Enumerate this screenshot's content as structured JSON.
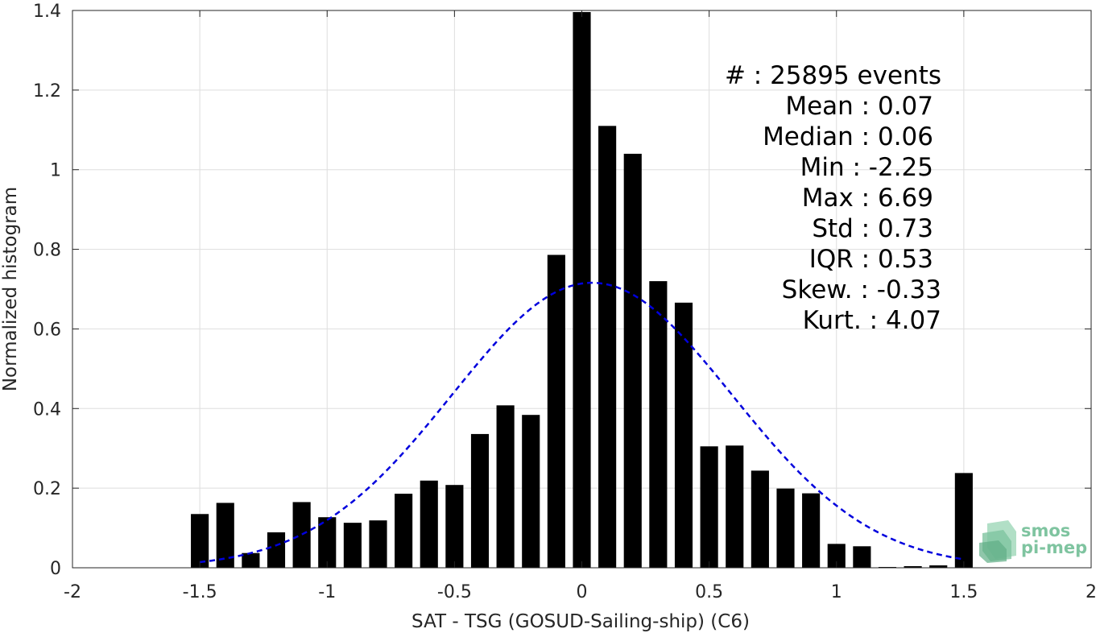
{
  "chart_data": {
    "type": "bar",
    "xlabel": "SAT - TSG (GOSUD-Sailing-ship) (C6)",
    "ylabel": "Normalized histogram",
    "xlim": [
      -2,
      2
    ],
    "ylim": [
      0,
      1.4
    ],
    "xticks": [
      -2,
      -1.5,
      -1,
      -0.5,
      0,
      0.5,
      1,
      1.5,
      2
    ],
    "xtick_labels": [
      "-2",
      "-1.5",
      "-1",
      "-0.5",
      "0",
      "0.5",
      "1",
      "1.5",
      "2"
    ],
    "yticks": [
      0,
      0.2,
      0.4,
      0.6,
      0.8,
      1,
      1.2,
      1.4
    ],
    "ytick_labels": [
      "0",
      "0.2",
      "0.4",
      "0.6",
      "0.8",
      "1",
      "1.2",
      "1.4"
    ],
    "grid": true,
    "bar_width": 0.07,
    "bar_color": "#000000",
    "x": [
      -1.5,
      -1.4,
      -1.3,
      -1.2,
      -1.1,
      -1.0,
      -0.9,
      -0.8,
      -0.7,
      -0.6,
      -0.5,
      -0.4,
      -0.3,
      -0.2,
      -0.1,
      0.0,
      0.1,
      0.2,
      0.3,
      0.4,
      0.5,
      0.6,
      0.7,
      0.8,
      0.9,
      1.0,
      1.1,
      1.2,
      1.3,
      1.4,
      1.5
    ],
    "values": [
      0.135,
      0.163,
      0.037,
      0.089,
      0.165,
      0.127,
      0.113,
      0.119,
      0.186,
      0.219,
      0.208,
      0.336,
      0.408,
      0.384,
      0.786,
      1.396,
      1.11,
      1.04,
      0.72,
      0.666,
      0.305,
      0.307,
      0.244,
      0.199,
      0.187,
      0.06,
      0.054,
      0.002,
      0.004,
      0.006,
      0.238
    ],
    "fit_curve": {
      "style": "dashed",
      "color": "#0000dd",
      "mean": 0.04,
      "std": 0.55,
      "peak": 0.716,
      "x_range": [
        -1.5,
        1.5
      ]
    },
    "stats": [
      {
        "label": "#",
        "sep": "  : ",
        "value": "25895 events"
      },
      {
        "label": "Mean",
        "sep": " : ",
        "value": "0.07"
      },
      {
        "label": "Median",
        "sep": " : ",
        "value": "0.06"
      },
      {
        "label": "Min",
        "sep": " : ",
        "value": "-2.25"
      },
      {
        "label": "Max",
        "sep": " : ",
        "value": "6.69"
      },
      {
        "label": "Std",
        "sep": " : ",
        "value": "0.73"
      },
      {
        "label": "IQR",
        "sep": " : ",
        "value": "0.53"
      },
      {
        "label": "Skew.",
        "sep": " : ",
        "value": "-0.33"
      },
      {
        "label": "Kurt.",
        "sep": " : ",
        "value": "4.07"
      }
    ]
  },
  "logo": {
    "line1": "smos",
    "line2": "pi-mep",
    "color": "#7fc4a0"
  }
}
